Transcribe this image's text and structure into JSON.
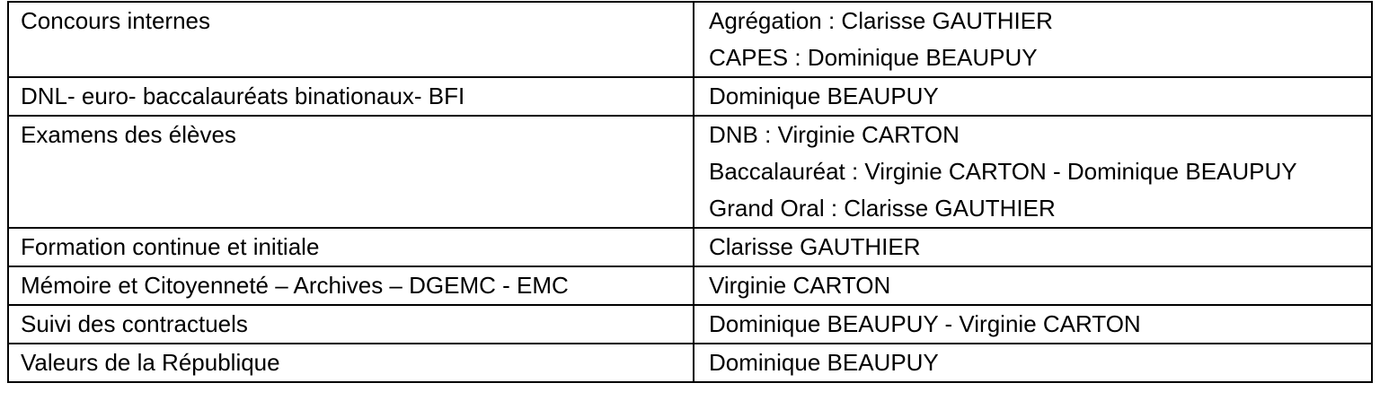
{
  "table": {
    "rows": [
      {
        "domain": "Concours internes",
        "contacts": [
          "Agrégation : Clarisse GAUTHIER",
          "CAPES : Dominique BEAUPUY"
        ]
      },
      {
        "domain": "DNL- euro- baccalauréats binationaux- BFI",
        "contacts": [
          "Dominique BEAUPUY"
        ]
      },
      {
        "domain": "Examens des élèves",
        "contacts": [
          "DNB : Virginie CARTON",
          "Baccalauréat : Virginie CARTON - Dominique BEAUPUY",
          "Grand Oral : Clarisse GAUTHIER"
        ]
      },
      {
        "domain": "Formation continue et initiale",
        "contacts": [
          "Clarisse GAUTHIER"
        ]
      },
      {
        "domain": "Mémoire et Citoyenneté – Archives – DGEMC - EMC",
        "contacts": [
          "Virginie CARTON"
        ]
      },
      {
        "domain": "Suivi des contractuels",
        "contacts": [
          "Dominique BEAUPUY - Virginie CARTON"
        ]
      },
      {
        "domain": "Valeurs de la République",
        "contacts": [
          "Dominique BEAUPUY"
        ]
      }
    ]
  }
}
